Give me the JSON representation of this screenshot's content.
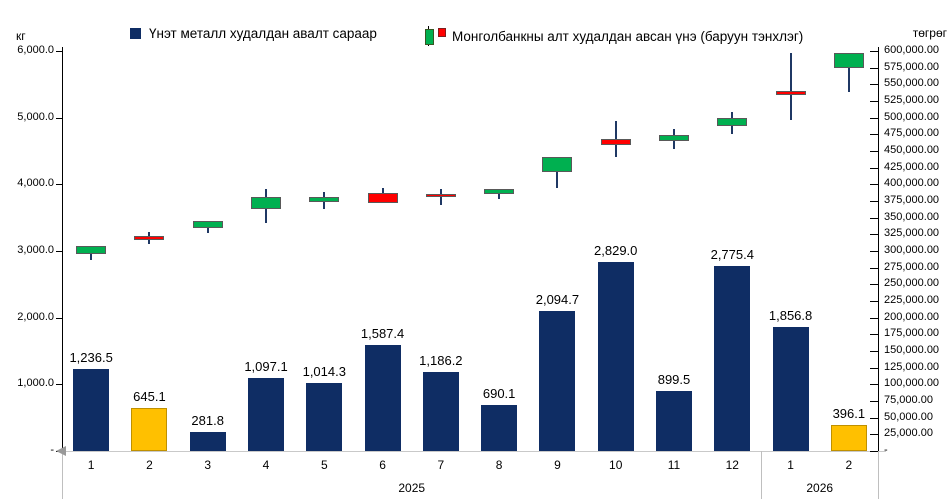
{
  "legend": {
    "bar_label": "Үнэт металл худалдан авалт сараар",
    "candle_label": "Монголбанкны алт худалдан авсан үнэ (баруун тэнхлэг)"
  },
  "axes": {
    "left_title": "кг",
    "right_title": "төгрөг",
    "left_tick_labels": [
      "6,000.0",
      "5,000.0",
      "4,000.0",
      "3,000.0",
      "2,000.0",
      "1,000.0",
      "-"
    ],
    "left_tick_values": [
      6000,
      5000,
      4000,
      3000,
      2000,
      1000,
      0
    ],
    "right_tick_labels": [
      "600,000.00",
      "575,000.00",
      "550,000.00",
      "525,000.00",
      "500,000.00",
      "475,000.00",
      "450,000.00",
      "425,000.00",
      "400,000.00",
      "375,000.00",
      "350,000.00",
      "325,000.00",
      "300,000.00",
      "275,000.00",
      "250,000.00",
      "225,000.00",
      "200,000.00",
      "175,000.00",
      "150,000.00",
      "125,000.00",
      "100,000.00",
      "75,000.00",
      "50,000.00",
      "25,000.00",
      "-"
    ],
    "right_tick_values": [
      600000,
      575000,
      550000,
      525000,
      500000,
      475000,
      450000,
      425000,
      400000,
      375000,
      350000,
      325000,
      300000,
      275000,
      250000,
      225000,
      200000,
      175000,
      150000,
      125000,
      100000,
      75000,
      50000,
      25000,
      0
    ]
  },
  "chart_data": {
    "type": "combo-bar-candlestick",
    "categories": [
      "1",
      "2",
      "3",
      "4",
      "5",
      "6",
      "7",
      "8",
      "9",
      "10",
      "11",
      "12",
      "1",
      "2"
    ],
    "year_groups": [
      {
        "label": "2025",
        "from": 0,
        "to": 11
      },
      {
        "label": "2026",
        "from": 12,
        "to": 13
      }
    ],
    "left_axis_range": [
      0,
      6000
    ],
    "right_axis_range": [
      0,
      600000
    ],
    "grid": false,
    "legend_position": "top",
    "series": [
      {
        "name": "Үнэт металл худалдан авалт сараар",
        "type": "bar",
        "axis": "left",
        "unit": "кг",
        "values": [
          1236.5,
          645.1,
          281.8,
          1097.1,
          1014.3,
          1587.4,
          1186.2,
          690.1,
          2094.7,
          2829.0,
          899.5,
          2775.4,
          1856.8,
          396.1
        ],
        "labels": [
          "1,236.5",
          "645.1",
          "281.8",
          "1,097.1",
          "1,014.3",
          "1,587.4",
          "1,186.2",
          "690.1",
          "2,094.7",
          "2,829.0",
          "899.5",
          "2,775.4",
          "1,856.8",
          "396.1"
        ],
        "highlighted_indices": [
          1,
          13
        ]
      },
      {
        "name": "Монголбанкны алт худалдан авсан үнэ (баруун тэнхлэг)",
        "type": "candlestick",
        "axis": "right",
        "unit": "төгрөг",
        "ohlc_order": [
          "open",
          "high",
          "low",
          "close"
        ],
        "ohlc": [
          [
            295500,
            308000,
            286500,
            308000
          ],
          [
            322500,
            329000,
            310500,
            316500
          ],
          [
            334000,
            345500,
            326500,
            345500
          ],
          [
            362500,
            392500,
            341500,
            380500
          ],
          [
            374000,
            389000,
            363000,
            380500
          ],
          [
            387500,
            394000,
            372500,
            372500
          ],
          [
            385000,
            393000,
            369000,
            380500
          ],
          [
            386000,
            393500,
            378000,
            393500
          ],
          [
            418500,
            441500,
            394000,
            441500
          ],
          [
            467500,
            494500,
            440500,
            458500
          ],
          [
            464500,
            482500,
            453000,
            474500
          ],
          [
            487500,
            508000,
            475000,
            499000
          ],
          [
            540500,
            597000,
            496500,
            534000
          ],
          [
            574000,
            596500,
            538000,
            596500
          ]
        ]
      }
    ]
  },
  "colors": {
    "bar": "#0f2d64",
    "bar_highlight": "#ffc000",
    "candle_up": "#00b050",
    "candle_down": "#ff0000",
    "candle_border": "#595959",
    "wick": "#1f3864",
    "axis": "#000000",
    "divider": "#bfbfbf"
  }
}
